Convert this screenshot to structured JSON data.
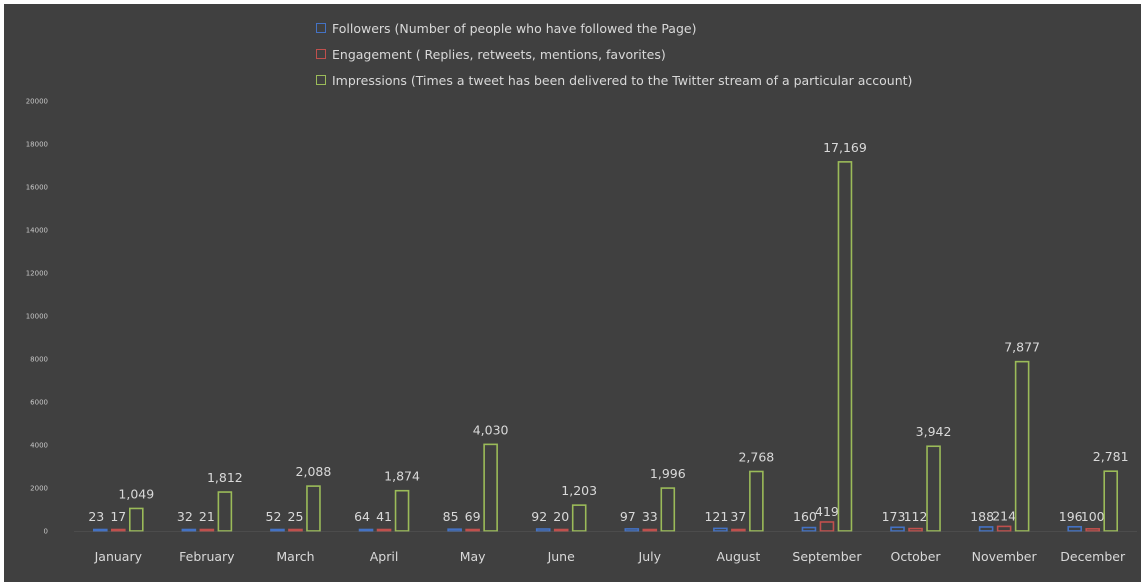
{
  "chart_data": {
    "type": "bar",
    "categories": [
      "January",
      "February",
      "March",
      "April",
      "May",
      "June",
      "July",
      "August",
      "September",
      "October",
      "November",
      "December"
    ],
    "series": [
      {
        "name": "Followers (Number of people who have followed the Page)",
        "color": "#4472c4",
        "values": [
          23,
          32,
          52,
          64,
          85,
          92,
          97,
          121,
          160,
          173,
          188,
          196
        ],
        "labels": [
          "23",
          "32",
          "52",
          "64",
          "85",
          "92",
          "97",
          "121",
          "160",
          "173",
          "188",
          "196"
        ]
      },
      {
        "name": "Engagement ( Replies, retweets,  mentions, favorites)",
        "color": "#c0504d",
        "values": [
          17,
          21,
          25,
          41,
          69,
          20,
          33,
          37,
          419,
          112,
          214,
          100
        ],
        "labels": [
          "17",
          "21",
          "25",
          "41",
          "69",
          "20",
          "33",
          "37",
          "419",
          "112",
          "214",
          "100"
        ]
      },
      {
        "name": "Impressions (Times a tweet has been delivered to the Twitter stream of a particular account)",
        "color": "#9bbb59",
        "values": [
          1049,
          1812,
          2088,
          1874,
          4030,
          1203,
          1996,
          2768,
          17169,
          3942,
          7877,
          2781
        ],
        "labels": [
          "1,049",
          "1,812",
          "2,088",
          "1,874",
          "4,030",
          "1,203",
          "1,996",
          "2,768",
          "17,169",
          "3,942",
          "7,877",
          "2,781"
        ]
      }
    ],
    "yaxis": {
      "min": 0,
      "max": 20000,
      "ticks": [
        "0",
        "2000",
        "4000",
        "6000",
        "8000",
        "10000",
        "12000",
        "14000",
        "16000",
        "18000",
        "20000"
      ]
    },
    "legend_position": "top",
    "grid": false
  }
}
